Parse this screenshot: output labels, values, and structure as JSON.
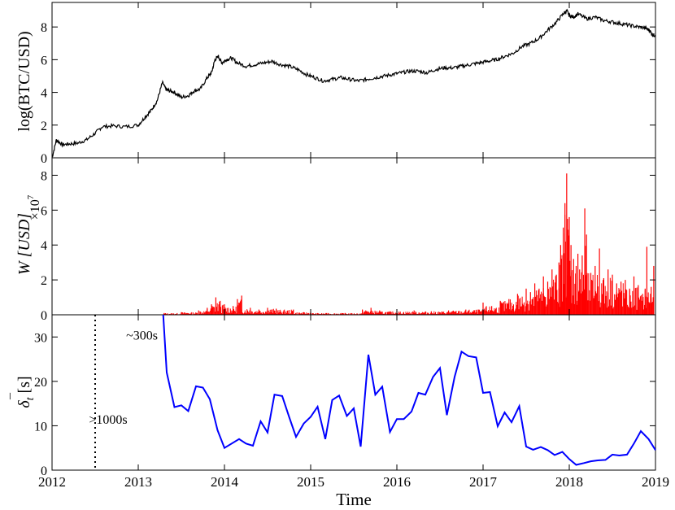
{
  "figure": {
    "xlabel": "Time",
    "x_ticks": [
      "2012",
      "2013",
      "2014",
      "2015",
      "2016",
      "2017",
      "2018",
      "2019"
    ],
    "x_range": [
      2012,
      2019
    ]
  },
  "chart_data": [
    {
      "type": "line",
      "ylabel": "log(BTC/USD)",
      "ylim": [
        0,
        9.5
      ],
      "y_ticks": [
        "0",
        "2",
        "4",
        "6",
        "8"
      ],
      "color": "#000000",
      "series": [
        {
          "x": [
            2012.0,
            2012.05,
            2012.12,
            2012.2,
            2012.3,
            2012.4,
            2012.5,
            2012.58,
            2012.7,
            2012.85,
            2013.0,
            2013.08,
            2013.15,
            2013.22,
            2013.28,
            2013.32,
            2013.36,
            2013.42,
            2013.5,
            2013.58,
            2013.65,
            2013.72,
            2013.8,
            2013.85,
            2013.89,
            2013.93,
            2013.97,
            2014.02,
            2014.08,
            2014.15,
            2014.25,
            2014.35,
            2014.45,
            2014.55,
            2014.65,
            2014.75,
            2014.85,
            2014.95,
            2015.05,
            2015.15,
            2015.25,
            2015.35,
            2015.45,
            2015.55,
            2015.65,
            2015.75,
            2015.85,
            2015.95,
            2016.05,
            2016.15,
            2016.25,
            2016.35,
            2016.45,
            2016.55,
            2016.65,
            2016.75,
            2016.85,
            2016.95,
            2017.05,
            2017.15,
            2017.25,
            2017.35,
            2017.45,
            2017.55,
            2017.65,
            2017.75,
            2017.85,
            2017.93,
            2017.97,
            2018.0,
            2018.05,
            2018.1,
            2018.2,
            2018.3,
            2018.4,
            2018.5,
            2018.6,
            2018.7,
            2018.8,
            2018.88,
            2018.93,
            2018.97,
            2019.0
          ],
          "values": [
            0.0,
            1.1,
            0.8,
            0.85,
            0.9,
            1.1,
            1.5,
            1.9,
            1.95,
            1.9,
            2.0,
            2.5,
            2.9,
            3.5,
            4.6,
            4.2,
            4.1,
            4.0,
            3.7,
            3.8,
            4.1,
            4.2,
            4.9,
            5.2,
            6.0,
            6.2,
            5.8,
            6.0,
            6.1,
            5.8,
            5.6,
            5.7,
            5.8,
            5.9,
            5.7,
            5.6,
            5.4,
            5.1,
            4.9,
            4.7,
            4.8,
            4.9,
            4.8,
            4.7,
            4.8,
            4.9,
            5.0,
            5.1,
            5.2,
            5.3,
            5.3,
            5.2,
            5.4,
            5.5,
            5.5,
            5.6,
            5.7,
            5.8,
            5.9,
            6.0,
            6.2,
            6.4,
            6.8,
            7.0,
            7.3,
            7.8,
            8.3,
            8.8,
            9.0,
            8.7,
            8.6,
            8.8,
            8.5,
            8.6,
            8.4,
            8.3,
            8.2,
            8.1,
            8.0,
            7.95,
            7.8,
            7.5,
            7.5
          ]
        }
      ]
    },
    {
      "type": "bar",
      "ylabel": "W [USD]",
      "y_multiplier": "×10",
      "y_exponent": "7",
      "ylim": [
        0,
        9
      ],
      "y_ticks": [
        "0",
        "2",
        "4",
        "6",
        "8"
      ],
      "color": "#ff0000",
      "series": [
        {
          "x": [
            2013.3,
            2013.5,
            2013.7,
            2013.8,
            2013.85,
            2013.9,
            2013.95,
            2014.0,
            2014.1,
            2014.15,
            2014.2,
            2014.3,
            2014.4,
            2014.5,
            2014.6,
            2014.8,
            2015.0,
            2015.2,
            2015.4,
            2015.6,
            2015.7,
            2015.8,
            2016.0,
            2016.2,
            2016.4,
            2016.6,
            2016.8,
            2016.95,
            2017.0,
            2017.1,
            2017.2,
            2017.3,
            2017.4,
            2017.5,
            2017.55,
            2017.6,
            2017.65,
            2017.7,
            2017.75,
            2017.8,
            2017.85,
            2017.88,
            2017.9,
            2017.93,
            2017.95,
            2017.97,
            2017.98,
            2018.0,
            2018.02,
            2018.05,
            2018.08,
            2018.1,
            2018.12,
            2018.15,
            2018.18,
            2018.2,
            2018.25,
            2018.3,
            2018.35,
            2018.4,
            2018.45,
            2018.5,
            2018.55,
            2018.6,
            2018.65,
            2018.7,
            2018.75,
            2018.8,
            2018.85,
            2018.88,
            2018.9,
            2018.95,
            2018.98
          ],
          "values": [
            0.1,
            0.15,
            0.25,
            0.4,
            0.6,
            1.0,
            0.8,
            0.6,
            0.5,
            0.9,
            1.1,
            0.4,
            0.3,
            0.4,
            0.35,
            0.3,
            0.15,
            0.1,
            0.1,
            0.3,
            0.4,
            0.25,
            0.2,
            0.25,
            0.2,
            0.25,
            0.3,
            0.3,
            0.7,
            0.5,
            0.8,
            0.9,
            1.2,
            1.5,
            1.3,
            1.8,
            1.5,
            2.2,
            1.9,
            2.6,
            2.3,
            3.0,
            4.0,
            5.0,
            6.4,
            8.1,
            5.5,
            5.6,
            4.0,
            3.2,
            2.8,
            3.5,
            2.6,
            3.4,
            6.1,
            4.6,
            2.4,
            2.8,
            3.8,
            2.1,
            2.6,
            2.3,
            1.8,
            1.9,
            2.0,
            1.5,
            2.2,
            1.7,
            1.2,
            1.5,
            3.9,
            1.6,
            2.8
          ]
        }
      ]
    },
    {
      "type": "line",
      "ylabel": "δt [s]",
      "ylabel_main": "δ",
      "ylabel_sub": "t",
      "ylabel_unit": " [s]",
      "ylim": [
        0,
        35
      ],
      "y_ticks": [
        "0",
        "10",
        "20",
        "30"
      ],
      "color": "#0000ff",
      "annotations": [
        {
          "text": "~300s",
          "x": 2013.0,
          "y": 30.5
        },
        {
          "text": ">1000s",
          "x": 2012.5,
          "y": 11.5
        }
      ],
      "vline_x": 2012.5,
      "series": [
        {
          "x": [
            2013.29,
            2013.33,
            2013.42,
            2013.5,
            2013.58,
            2013.67,
            2013.75,
            2013.83,
            2013.92,
            2014.0,
            2014.17,
            2014.25,
            2014.33,
            2014.42,
            2014.5,
            2014.58,
            2014.67,
            2014.75,
            2014.83,
            2014.92,
            2015.0,
            2015.08,
            2015.17,
            2015.25,
            2015.33,
            2015.42,
            2015.5,
            2015.58,
            2015.67,
            2015.75,
            2015.83,
            2015.92,
            2016.0,
            2016.08,
            2016.17,
            2016.25,
            2016.33,
            2016.42,
            2016.5,
            2016.58,
            2016.67,
            2016.75,
            2016.83,
            2016.92,
            2017.0,
            2017.08,
            2017.17,
            2017.25,
            2017.33,
            2017.42,
            2017.5,
            2017.58,
            2017.67,
            2017.75,
            2017.83,
            2017.92,
            2018.0,
            2018.08,
            2018.17,
            2018.25,
            2018.33,
            2018.42,
            2018.5,
            2018.58,
            2018.67,
            2018.75,
            2018.83,
            2018.92,
            2019.0
          ],
          "values": [
            35,
            22,
            14.2,
            14.6,
            13.3,
            18.9,
            18.6,
            16,
            9,
            5,
            7,
            6,
            5.5,
            11,
            8.5,
            17,
            16.7,
            12,
            7.5,
            10.5,
            12,
            14.3,
            7,
            15.8,
            16.8,
            12.2,
            13.9,
            5.3,
            26,
            17,
            18.8,
            8.6,
            11.5,
            11.5,
            13.2,
            17.4,
            17,
            21,
            23,
            12.4,
            21,
            26.7,
            25.7,
            25.4,
            17.4,
            17.6,
            9.9,
            13,
            10.8,
            14.4,
            5.3,
            4.6,
            5.2,
            4.5,
            3.4,
            4.1,
            2.5,
            1.2,
            1.6,
            2,
            2.2,
            2.3,
            3.5,
            3.3,
            3.5,
            6,
            8.8,
            7,
            4.5
          ]
        }
      ]
    }
  ]
}
